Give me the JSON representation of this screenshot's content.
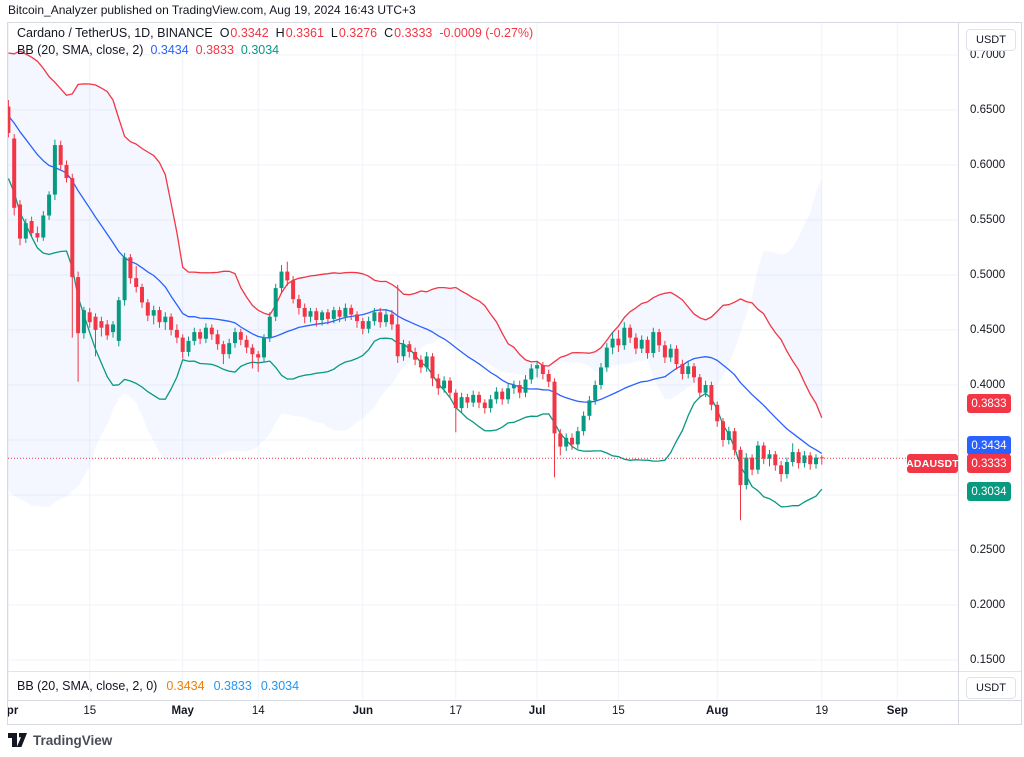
{
  "attribution": "Bitcoin_Analyzer published on TradingView.com, Aug 19, 2024 16:43 UTC+3",
  "legend": {
    "symbol": "Cardano / TetherUS, 1D, BINANCE",
    "o_label": "O",
    "o": "0.3342",
    "h_label": "H",
    "h": "0.3361",
    "l_label": "L",
    "l": "0.3276",
    "c_label": "C",
    "c": "0.3333",
    "change": "-0.0009 (-0.27%)",
    "bb_label": "BB (20, SMA, close, 2)",
    "bb_values": [
      "0.3434",
      "0.3833",
      "0.3034"
    ]
  },
  "bottom_pane": {
    "label": "BB (20, SMA, close, 2, 0)",
    "values": [
      "0.3434",
      "0.3833",
      "0.3034"
    ]
  },
  "watermark": "TradingView",
  "colors": {
    "up": "#089981",
    "down": "#F23645",
    "sma": "#2962FF",
    "bb_upper": "#F23645",
    "bb_lower": "#089981",
    "band_fill": "rgba(41,98,255,0.05)",
    "grid": "#F0F3FA",
    "frame": "#D6D9E0",
    "text": "#131722",
    "price_line": "#F23645",
    "bottom_basis": "#F57C00",
    "bottom_band": "#2196F3"
  },
  "price_axis": {
    "unit": "USDT",
    "labels": [
      {
        "text": "0.7000",
        "price": 0.7
      },
      {
        "text": "0.6500",
        "price": 0.65
      },
      {
        "text": "0.6000",
        "price": 0.6
      },
      {
        "text": "0.5500",
        "price": 0.55
      },
      {
        "text": "0.5000",
        "price": 0.5
      },
      {
        "text": "0.4500",
        "price": 0.45
      },
      {
        "text": "0.4000",
        "price": 0.4
      },
      {
        "text": "0.2500",
        "price": 0.25
      },
      {
        "text": "0.2000",
        "price": 0.2
      },
      {
        "text": "0.1500",
        "price": 0.15
      }
    ],
    "grid_prices": [
      0.15,
      0.2,
      0.25,
      0.3,
      0.35,
      0.4,
      0.45,
      0.5,
      0.55,
      0.6,
      0.65,
      0.7
    ],
    "badges": [
      {
        "text": "0.3833",
        "price": 0.3833,
        "color": "#F23645"
      },
      {
        "text": "0.3434",
        "price": 0.3434,
        "color": "#2962FF"
      },
      {
        "text": "0.3333",
        "price": 0.3333,
        "color": "#F23645",
        "tag": "ADAUSDT"
      },
      {
        "text": "0.3034",
        "price": 0.3034,
        "color": "#089981"
      }
    ]
  },
  "time_axis": {
    "labels": [
      {
        "text": "Apr",
        "day": 0,
        "month": true
      },
      {
        "text": "15",
        "day": 14
      },
      {
        "text": "May",
        "day": 30,
        "month": true
      },
      {
        "text": "14",
        "day": 43
      },
      {
        "text": "Jun",
        "day": 61,
        "month": true
      },
      {
        "text": "17",
        "day": 77
      },
      {
        "text": "Jul",
        "day": 91,
        "month": true
      },
      {
        "text": "15",
        "day": 105
      },
      {
        "text": "Aug",
        "day": 122,
        "month": true
      },
      {
        "text": "19",
        "day": 140
      },
      {
        "text": "Sep",
        "day": 153,
        "month": true
      }
    ]
  },
  "chart_data": {
    "type": "candlestick",
    "pair": "ADAUSDT",
    "exchange": "BINANCE",
    "timeframe": "1D",
    "x_range_labels": [
      "Apr",
      "Sep"
    ],
    "ylim": [
      0.14,
      0.729
    ],
    "price_line": 0.3333,
    "last_ohlc": {
      "o": 0.3342,
      "h": 0.3361,
      "l": 0.3276,
      "c": 0.3333
    },
    "bollinger": {
      "period": 20,
      "stddev": 2,
      "basis_last": 0.3434,
      "upper_last": 0.3833,
      "lower_last": 0.3034,
      "seed_closes": [
        0.695,
        0.69,
        0.684,
        0.678,
        0.672,
        0.666,
        0.66,
        0.654,
        0.648,
        0.642,
        0.636,
        0.63,
        0.624,
        0.618,
        0.612,
        0.606,
        0.6,
        0.61,
        0.64
      ]
    },
    "candles": [
      [
        0.653,
        0.659,
        0.625,
        0.629
      ],
      [
        0.624,
        0.628,
        0.554,
        0.561
      ],
      [
        0.564,
        0.568,
        0.527,
        0.533
      ],
      [
        0.533,
        0.551,
        0.529,
        0.547
      ],
      [
        0.549,
        0.553,
        0.534,
        0.538
      ],
      [
        0.538,
        0.544,
        0.53,
        0.534
      ],
      [
        0.534,
        0.558,
        0.531,
        0.554
      ],
      [
        0.554,
        0.576,
        0.55,
        0.573
      ],
      [
        0.573,
        0.623,
        0.568,
        0.618
      ],
      [
        0.618,
        0.622,
        0.596,
        0.6
      ],
      [
        0.6,
        0.604,
        0.584,
        0.588
      ],
      [
        0.588,
        0.592,
        0.443,
        0.498
      ],
      [
        0.498,
        0.503,
        0.403,
        0.447
      ],
      [
        0.447,
        0.471,
        0.442,
        0.468
      ],
      [
        0.466,
        0.47,
        0.452,
        0.457
      ],
      [
        0.462,
        0.465,
        0.426,
        0.45
      ],
      [
        0.458,
        0.462,
        0.444,
        0.452
      ],
      [
        0.455,
        0.459,
        0.441,
        0.445
      ],
      [
        0.448,
        0.458,
        0.443,
        0.455
      ],
      [
        0.44,
        0.48,
        0.435,
        0.477
      ],
      [
        0.477,
        0.52,
        0.472,
        0.516
      ],
      [
        0.516,
        0.519,
        0.492,
        0.497
      ],
      [
        0.497,
        0.508,
        0.484,
        0.489
      ],
      [
        0.489,
        0.492,
        0.47,
        0.475
      ],
      [
        0.475,
        0.478,
        0.458,
        0.463
      ],
      [
        0.463,
        0.472,
        0.455,
        0.468
      ],
      [
        0.468,
        0.471,
        0.452,
        0.457
      ],
      [
        0.457,
        0.466,
        0.45,
        0.462
      ],
      [
        0.462,
        0.465,
        0.445,
        0.45
      ],
      [
        0.45,
        0.455,
        0.438,
        0.443
      ],
      [
        0.443,
        0.446,
        0.424,
        0.43
      ],
      [
        0.43,
        0.444,
        0.426,
        0.44
      ],
      [
        0.44,
        0.452,
        0.436,
        0.448
      ],
      [
        0.448,
        0.451,
        0.437,
        0.442
      ],
      [
        0.442,
        0.456,
        0.438,
        0.452
      ],
      [
        0.452,
        0.455,
        0.441,
        0.446
      ],
      [
        0.446,
        0.45,
        0.432,
        0.437
      ],
      [
        0.437,
        0.44,
        0.419,
        0.428
      ],
      [
        0.428,
        0.442,
        0.424,
        0.438
      ],
      [
        0.438,
        0.452,
        0.434,
        0.448
      ],
      [
        0.448,
        0.451,
        0.436,
        0.441
      ],
      [
        0.441,
        0.445,
        0.429,
        0.434
      ],
      [
        0.434,
        0.437,
        0.415,
        0.428
      ],
      [
        0.428,
        0.431,
        0.412,
        0.425
      ],
      [
        0.425,
        0.446,
        0.421,
        0.443
      ],
      [
        0.443,
        0.466,
        0.439,
        0.462
      ],
      [
        0.462,
        0.492,
        0.458,
        0.488
      ],
      [
        0.488,
        0.509,
        0.484,
        0.503
      ],
      [
        0.503,
        0.512,
        0.49,
        0.495
      ],
      [
        0.495,
        0.499,
        0.474,
        0.478
      ],
      [
        0.478,
        0.482,
        0.464,
        0.47
      ],
      [
        0.47,
        0.474,
        0.456,
        0.462
      ],
      [
        0.462,
        0.47,
        0.457,
        0.467
      ],
      [
        0.467,
        0.47,
        0.453,
        0.459
      ],
      [
        0.459,
        0.468,
        0.454,
        0.466
      ],
      [
        0.466,
        0.469,
        0.455,
        0.46
      ],
      [
        0.46,
        0.471,
        0.456,
        0.468
      ],
      [
        0.468,
        0.471,
        0.457,
        0.462
      ],
      [
        0.462,
        0.474,
        0.458,
        0.47
      ],
      [
        0.47,
        0.473,
        0.459,
        0.464
      ],
      [
        0.464,
        0.467,
        0.452,
        0.458
      ],
      [
        0.458,
        0.461,
        0.446,
        0.451
      ],
      [
        0.451,
        0.462,
        0.447,
        0.458
      ],
      [
        0.458,
        0.47,
        0.454,
        0.466
      ],
      [
        0.466,
        0.47,
        0.452,
        0.457
      ],
      [
        0.457,
        0.468,
        0.453,
        0.464
      ],
      [
        0.464,
        0.468,
        0.45,
        0.455
      ],
      [
        0.455,
        0.491,
        0.42,
        0.426
      ],
      [
        0.426,
        0.441,
        0.422,
        0.437
      ],
      [
        0.437,
        0.44,
        0.425,
        0.43
      ],
      [
        0.43,
        0.434,
        0.418,
        0.423
      ],
      [
        0.423,
        0.427,
        0.411,
        0.416
      ],
      [
        0.416,
        0.43,
        0.412,
        0.426
      ],
      [
        0.426,
        0.429,
        0.399,
        0.406
      ],
      [
        0.406,
        0.41,
        0.391,
        0.397
      ],
      [
        0.397,
        0.408,
        0.393,
        0.404
      ],
      [
        0.404,
        0.407,
        0.388,
        0.393
      ],
      [
        0.393,
        0.396,
        0.357,
        0.379
      ],
      [
        0.379,
        0.393,
        0.375,
        0.389
      ],
      [
        0.389,
        0.392,
        0.379,
        0.384
      ],
      [
        0.384,
        0.395,
        0.38,
        0.391
      ],
      [
        0.391,
        0.394,
        0.379,
        0.384
      ],
      [
        0.384,
        0.387,
        0.374,
        0.379
      ],
      [
        0.379,
        0.391,
        0.375,
        0.387
      ],
      [
        0.387,
        0.398,
        0.383,
        0.394
      ],
      [
        0.394,
        0.397,
        0.382,
        0.387
      ],
      [
        0.387,
        0.401,
        0.383,
        0.397
      ],
      [
        0.397,
        0.404,
        0.392,
        0.4
      ],
      [
        0.4,
        0.404,
        0.388,
        0.393
      ],
      [
        0.393,
        0.409,
        0.389,
        0.405
      ],
      [
        0.405,
        0.419,
        0.401,
        0.415
      ],
      [
        0.415,
        0.422,
        0.407,
        0.418
      ],
      [
        0.418,
        0.421,
        0.405,
        0.41
      ],
      [
        0.41,
        0.414,
        0.398,
        0.403
      ],
      [
        0.403,
        0.406,
        0.316,
        0.356
      ],
      [
        0.356,
        0.36,
        0.336,
        0.344
      ],
      [
        0.344,
        0.356,
        0.34,
        0.352
      ],
      [
        0.352,
        0.356,
        0.341,
        0.346
      ],
      [
        0.346,
        0.362,
        0.342,
        0.358
      ],
      [
        0.358,
        0.376,
        0.354,
        0.372
      ],
      [
        0.372,
        0.39,
        0.368,
        0.386
      ],
      [
        0.386,
        0.404,
        0.382,
        0.4
      ],
      [
        0.4,
        0.42,
        0.396,
        0.416
      ],
      [
        0.416,
        0.438,
        0.412,
        0.434
      ],
      [
        0.434,
        0.448,
        0.428,
        0.442
      ],
      [
        0.442,
        0.45,
        0.43,
        0.436
      ],
      [
        0.436,
        0.457,
        0.432,
        0.452
      ],
      [
        0.452,
        0.455,
        0.438,
        0.443
      ],
      [
        0.443,
        0.447,
        0.428,
        0.433
      ],
      [
        0.433,
        0.445,
        0.429,
        0.441
      ],
      [
        0.441,
        0.444,
        0.424,
        0.429
      ],
      [
        0.429,
        0.452,
        0.425,
        0.448
      ],
      [
        0.448,
        0.451,
        0.43,
        0.436
      ],
      [
        0.436,
        0.44,
        0.42,
        0.425
      ],
      [
        0.425,
        0.437,
        0.421,
        0.433
      ],
      [
        0.433,
        0.436,
        0.414,
        0.419
      ],
      [
        0.419,
        0.423,
        0.405,
        0.41
      ],
      [
        0.41,
        0.421,
        0.406,
        0.417
      ],
      [
        0.417,
        0.42,
        0.402,
        0.407
      ],
      [
        0.407,
        0.41,
        0.388,
        0.393
      ],
      [
        0.393,
        0.404,
        0.389,
        0.4
      ],
      [
        0.4,
        0.403,
        0.377,
        0.382
      ],
      [
        0.382,
        0.385,
        0.362,
        0.367
      ],
      [
        0.367,
        0.37,
        0.344,
        0.35
      ],
      [
        0.35,
        0.362,
        0.346,
        0.358
      ],
      [
        0.358,
        0.361,
        0.336,
        0.341
      ],
      [
        0.341,
        0.344,
        0.277,
        0.309
      ],
      [
        0.309,
        0.338,
        0.305,
        0.334
      ],
      [
        0.334,
        0.337,
        0.318,
        0.323
      ],
      [
        0.323,
        0.349,
        0.319,
        0.345
      ],
      [
        0.345,
        0.348,
        0.328,
        0.333
      ],
      [
        0.333,
        0.341,
        0.326,
        0.337
      ],
      [
        0.337,
        0.34,
        0.322,
        0.327
      ],
      [
        0.327,
        0.331,
        0.312,
        0.319
      ],
      [
        0.319,
        0.334,
        0.315,
        0.33
      ],
      [
        0.33,
        0.347,
        0.326,
        0.339
      ],
      [
        0.339,
        0.342,
        0.324,
        0.329
      ],
      [
        0.329,
        0.34,
        0.325,
        0.336
      ],
      [
        0.336,
        0.339,
        0.323,
        0.328
      ],
      [
        0.328,
        0.337,
        0.324,
        0.334
      ],
      [
        0.3342,
        0.3361,
        0.3276,
        0.3333
      ]
    ]
  }
}
